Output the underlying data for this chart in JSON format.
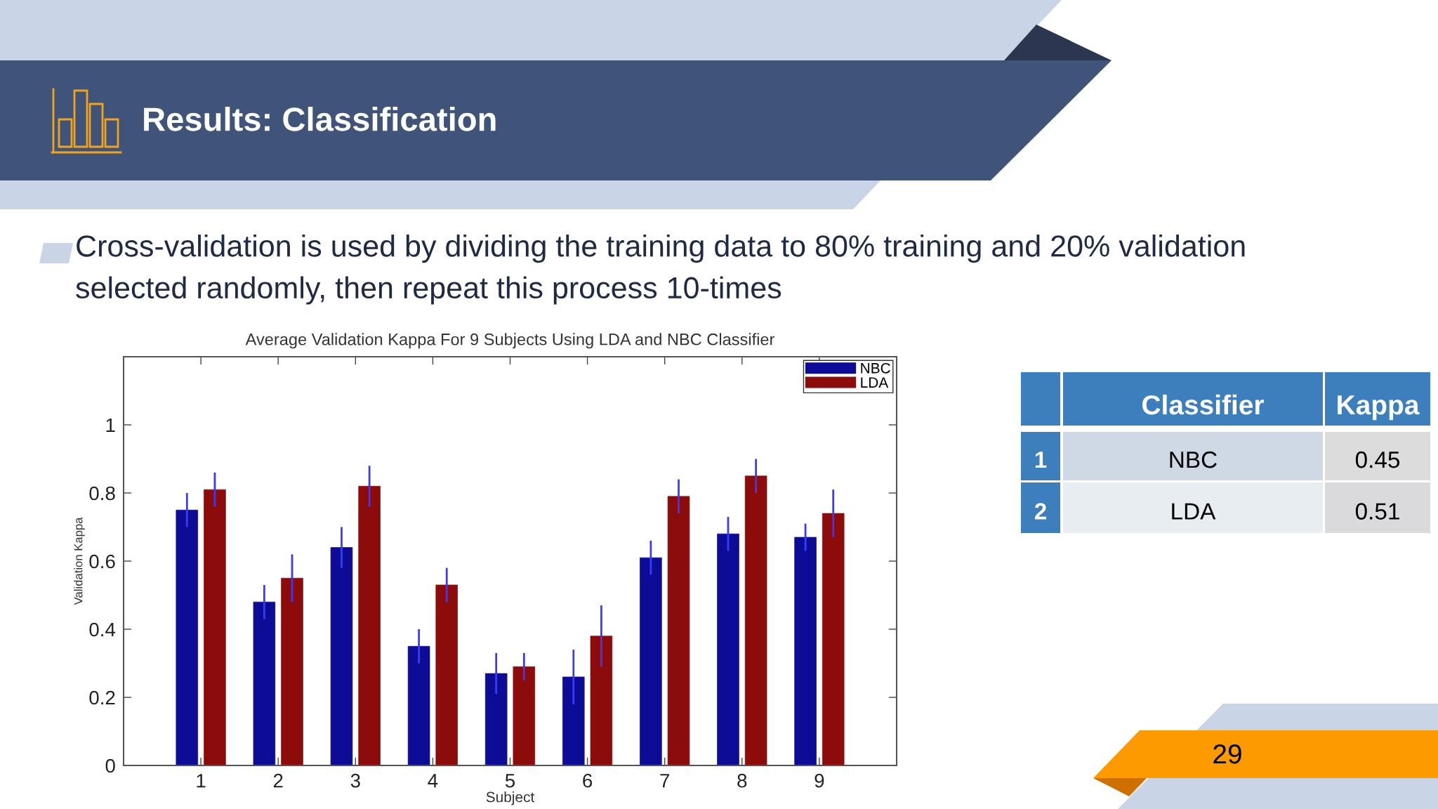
{
  "chart_data": [
    {
      "type": "other",
      "title": "Results: Classification",
      "annotations": [
        "Cross-validation is used by dividing the training data to 80% training and 20% validation selected randomly, then repeat this process 10-times",
        "29"
      ]
    },
    {
      "type": "bar",
      "title": "Average Validation Kappa For 9 Subjects Using LDA and NBC Classifier",
      "xlabel": "Subject",
      "ylabel": "Validation Kappa",
      "categories": [
        "1",
        "2",
        "3",
        "4",
        "5",
        "6",
        "7",
        "8",
        "9"
      ],
      "series": [
        {
          "name": "NBC",
          "color": "#0c0c96",
          "values": [
            0.75,
            0.48,
            0.64,
            0.35,
            0.27,
            0.26,
            0.61,
            0.68,
            0.67
          ],
          "errors": [
            0.05,
            0.05,
            0.06,
            0.05,
            0.06,
            0.08,
            0.05,
            0.05,
            0.04
          ]
        },
        {
          "name": "LDA",
          "color": "#8c0b0b",
          "values": [
            0.81,
            0.55,
            0.82,
            0.53,
            0.29,
            0.38,
            0.79,
            0.85,
            0.74
          ],
          "errors": [
            0.05,
            0.07,
            0.06,
            0.05,
            0.04,
            0.09,
            0.05,
            0.05,
            0.07
          ]
        }
      ],
      "ylim": [
        0,
        1.2
      ],
      "yticks": [
        0,
        0.2,
        0.4,
        0.6,
        0.8,
        1
      ],
      "legend": "top right"
    },
    {
      "type": "other",
      "categories": [
        null,
        "Classifier",
        "Kappa"
      ],
      "y_categories": [
        "1",
        "2"
      ],
      "cell_labels": [
        [
          "NBC",
          "0.45"
        ],
        [
          "LDA",
          "0.51"
        ]
      ]
    }
  ]
}
